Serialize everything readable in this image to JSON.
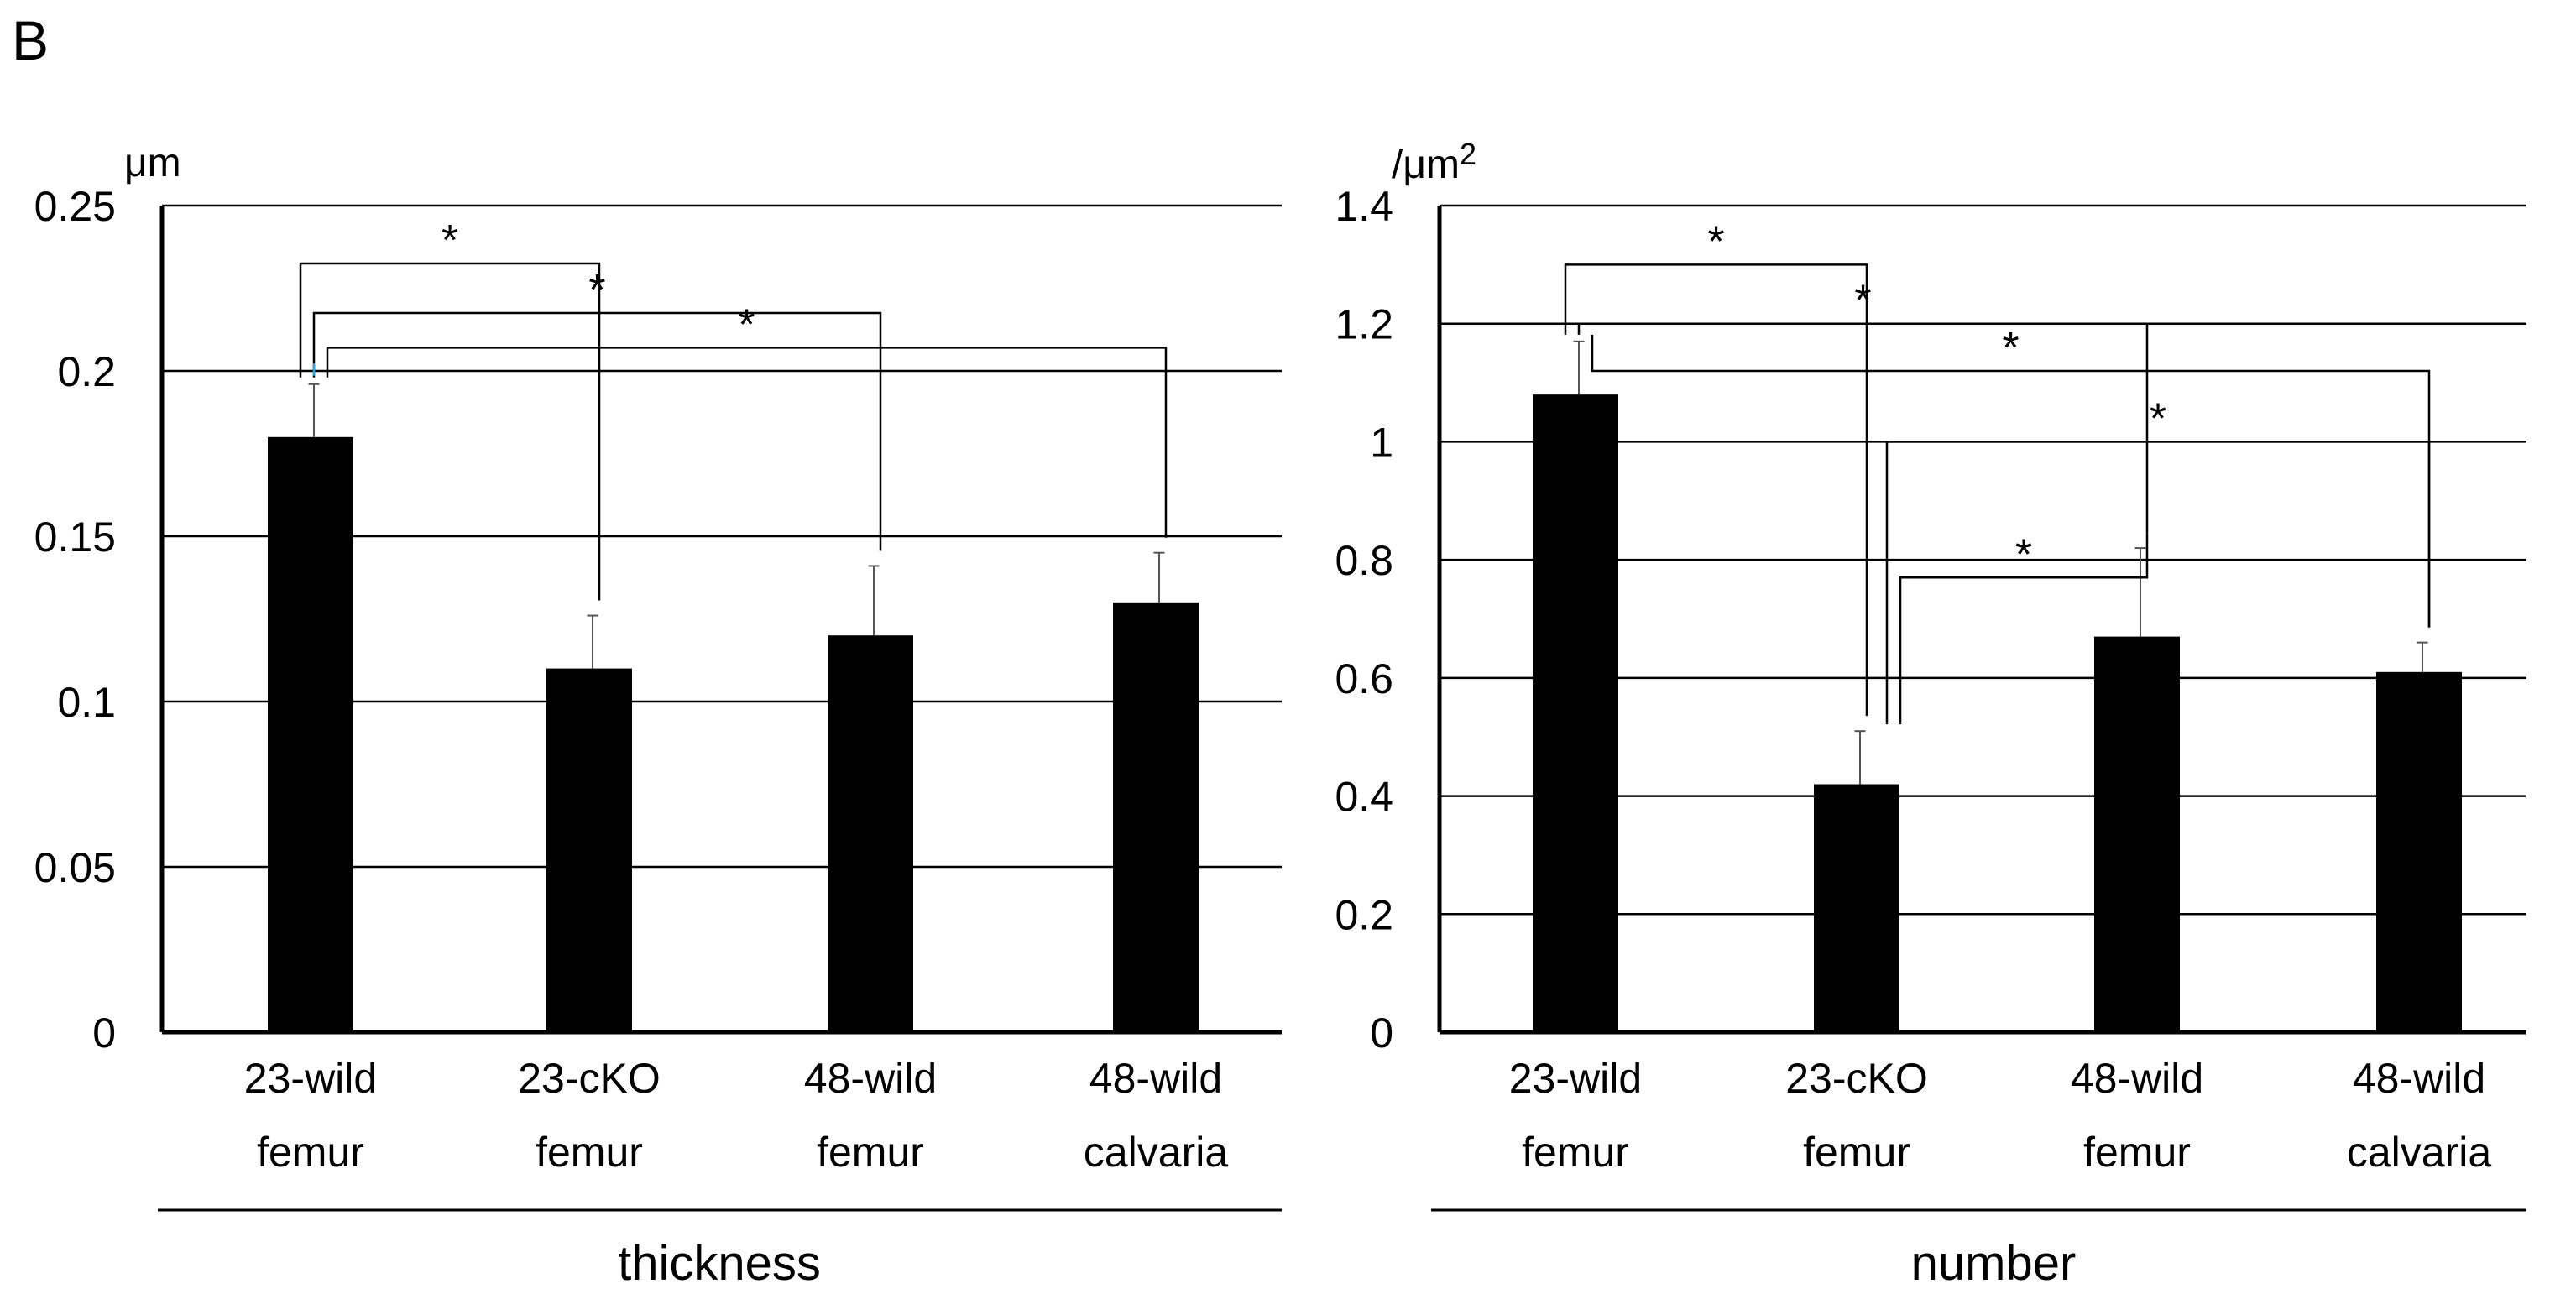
{
  "panel_label": "B",
  "chart_data": [
    {
      "type": "bar",
      "title": "",
      "xlabel": "thickness",
      "ylabel": "",
      "unit_label": "μm",
      "unit_superscript": "",
      "categories": [
        [
          "23-wild",
          "femur"
        ],
        [
          "23-cKO",
          "femur"
        ],
        [
          "48-wild",
          "femur"
        ],
        [
          "48-wild",
          "calvaria"
        ]
      ],
      "values": [
        0.18,
        0.11,
        0.12,
        0.13
      ],
      "errors": [
        0.016,
        0.016,
        0.021,
        0.015
      ],
      "ylim": [
        0,
        0.25
      ],
      "yticks": [
        0,
        0.05,
        0.1,
        0.15,
        0.2,
        0.25
      ],
      "ytick_labels": [
        "0",
        "0.05",
        "0.1",
        "0.15",
        "0.2",
        "0.25"
      ],
      "grid": true,
      "significance": [
        {
          "from": 0,
          "to": 1,
          "level": 0.2325,
          "label": "*",
          "color": "#000000"
        },
        {
          "from": 0,
          "to": 2,
          "level": 0.2175,
          "label": "*",
          "color": "#29a3df"
        },
        {
          "from": 0,
          "to": 3,
          "level": 0.207,
          "label": "*",
          "color": "#29a3df"
        }
      ],
      "colors": {
        "bar": "#000000",
        "grid": "#000000"
      }
    },
    {
      "type": "bar",
      "title": "",
      "xlabel": "number",
      "ylabel": "",
      "unit_label": "/μm",
      "unit_superscript": "2",
      "categories": [
        [
          "23-wild",
          "femur"
        ],
        [
          "23-cKO",
          "femur"
        ],
        [
          "48-wild",
          "femur"
        ],
        [
          "48-wild",
          "calvaria"
        ]
      ],
      "values": [
        1.08,
        0.42,
        0.67,
        0.61
      ],
      "errors": [
        0.09,
        0.09,
        0.15,
        0.05
      ],
      "ylim": [
        0,
        1.4
      ],
      "yticks": [
        0,
        0.2,
        0.4,
        0.6,
        0.8,
        1,
        1.2,
        1.4
      ],
      "ytick_labels": [
        "0",
        "0.2",
        "0.4",
        "0.6",
        "0.8",
        "1",
        "1.2",
        "1.4"
      ],
      "grid": true,
      "significance": [
        {
          "from": 0,
          "to": 1,
          "level": 1.3,
          "label": "*",
          "color": "#000000"
        },
        {
          "from": 0,
          "to": 2,
          "level": 1.2,
          "label": "*",
          "color": "#000000"
        },
        {
          "from": 0,
          "to": 3,
          "level": 1.12,
          "label": "*",
          "color": "#000000"
        },
        {
          "from": 1,
          "to": 3,
          "level": 1.0,
          "label": "*",
          "color": "#000000"
        },
        {
          "from": 1,
          "to": 2,
          "level": 0.77,
          "label": "*",
          "color": "#000000"
        }
      ],
      "colors": {
        "bar": "#000000",
        "grid": "#000000"
      }
    }
  ]
}
